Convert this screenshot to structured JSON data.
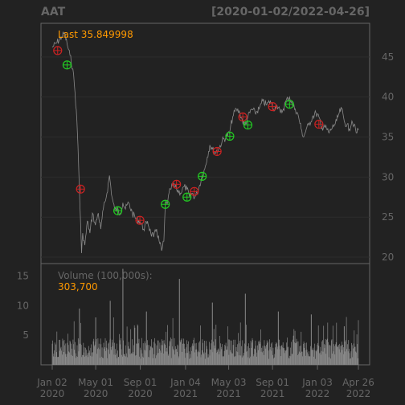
{
  "chart_data": [
    {
      "type": "line",
      "title": "AAT",
      "date_range": "[2020-01-02/2022-04-26]",
      "last_label": "Last 35.849998",
      "y_ticks": [
        "45",
        "40",
        "35",
        "30",
        "25",
        "20"
      ],
      "ylim": [
        19.2,
        49.2
      ],
      "xlim": [
        "2020-01-02",
        "2022-04-26"
      ],
      "grid": true,
      "colors": {
        "price": "#8a8a8a",
        "sell": "#cc2222",
        "buy": "#22cc22",
        "last": "#ff9900",
        "text": "#8a8a8a",
        "axis": "#666666"
      },
      "series": [
        {
          "values": [
            [
              "2020-01-02",
              46.2
            ],
            [
              "2020-01-15",
              46.8
            ],
            [
              "2020-01-28",
              47.5
            ],
            [
              "2020-02-05",
              48.0
            ],
            [
              "2020-02-12",
              46.6
            ],
            [
              "2020-02-20",
              45.2
            ],
            [
              "2020-02-28",
              43.5
            ],
            [
              "2020-03-05",
              40.5
            ],
            [
              "2020-03-10",
              37.0
            ],
            [
              "2020-03-13",
              34.0
            ],
            [
              "2020-03-17",
              28.5
            ],
            [
              "2020-03-20",
              24.5
            ],
            [
              "2020-03-23",
              20.5
            ],
            [
              "2020-03-26",
              23.0
            ],
            [
              "2020-04-01",
              21.5
            ],
            [
              "2020-04-08",
              24.5
            ],
            [
              "2020-04-15",
              23.0
            ],
            [
              "2020-04-22",
              25.5
            ],
            [
              "2020-04-30",
              24.0
            ],
            [
              "2020-05-08",
              25.5
            ],
            [
              "2020-05-15",
              23.5
            ],
            [
              "2020-05-22",
              26.0
            ],
            [
              "2020-06-01",
              28.0
            ],
            [
              "2020-06-08",
              30.2
            ],
            [
              "2020-06-15",
              27.5
            ],
            [
              "2020-06-22",
              26.0
            ],
            [
              "2020-06-30",
              25.8
            ],
            [
              "2020-07-08",
              25.5
            ],
            [
              "2020-07-15",
              26.8
            ],
            [
              "2020-07-22",
              26.0
            ],
            [
              "2020-07-31",
              26.8
            ],
            [
              "2020-08-10",
              25.5
            ],
            [
              "2020-08-20",
              24.8
            ],
            [
              "2020-08-31",
              24.5
            ],
            [
              "2020-09-10",
              23.5
            ],
            [
              "2020-09-21",
              24.5
            ],
            [
              "2020-09-30",
              23.0
            ],
            [
              "2020-10-08",
              22.5
            ],
            [
              "2020-10-16",
              23.5
            ],
            [
              "2020-10-23",
              22.0
            ],
            [
              "2020-10-30",
              20.8
            ],
            [
              "2020-11-05",
              22.0
            ],
            [
              "2020-11-09",
              26.5
            ],
            [
              "2020-11-16",
              27.0
            ],
            [
              "2020-11-23",
              28.5
            ],
            [
              "2020-12-01",
              29.0
            ],
            [
              "2020-12-10",
              28.5
            ],
            [
              "2020-12-21",
              28.0
            ],
            [
              "2020-12-31",
              28.8
            ],
            [
              "2021-01-08",
              28.5
            ],
            [
              "2021-01-15",
              27.5
            ],
            [
              "2021-01-22",
              28.0
            ],
            [
              "2021-01-29",
              27.5
            ],
            [
              "2021-02-05",
              28.0
            ],
            [
              "2021-02-12",
              29.0
            ],
            [
              "2021-02-19",
              30.2
            ],
            [
              "2021-02-26",
              31.0
            ],
            [
              "2021-03-05",
              32.5
            ],
            [
              "2021-03-12",
              34.0
            ],
            [
              "2021-03-19",
              33.5
            ],
            [
              "2021-03-26",
              33.0
            ],
            [
              "2021-04-05",
              33.5
            ],
            [
              "2021-04-15",
              34.5
            ],
            [
              "2021-04-26",
              35.0
            ],
            [
              "2021-05-05",
              35.5
            ],
            [
              "2021-05-14",
              37.5
            ],
            [
              "2021-05-24",
              38.5
            ],
            [
              "2021-06-03",
              38.0
            ],
            [
              "2021-06-10",
              37.0
            ],
            [
              "2021-06-17",
              36.5
            ],
            [
              "2021-06-25",
              37.5
            ],
            [
              "2021-07-06",
              38.5
            ],
            [
              "2021-07-15",
              38.0
            ],
            [
              "2021-07-26",
              38.5
            ],
            [
              "2021-08-05",
              39.5
            ],
            [
              "2021-08-16",
              39.0
            ],
            [
              "2021-08-26",
              39.5
            ],
            [
              "2021-09-03",
              38.5
            ],
            [
              "2021-09-13",
              39.0
            ],
            [
              "2021-09-23",
              38.0
            ],
            [
              "2021-10-01",
              38.5
            ],
            [
              "2021-10-08",
              39.5
            ],
            [
              "2021-10-18",
              40.0
            ],
            [
              "2021-10-26",
              39.0
            ],
            [
              "2021-11-03",
              38.5
            ],
            [
              "2021-11-12",
              37.5
            ],
            [
              "2021-11-19",
              36.0
            ],
            [
              "2021-11-26",
              35.0
            ],
            [
              "2021-12-03",
              36.0
            ],
            [
              "2021-12-10",
              36.5
            ],
            [
              "2021-12-20",
              37.5
            ],
            [
              "2021-12-30",
              38.0
            ],
            [
              "2022-01-07",
              37.5
            ],
            [
              "2022-01-14",
              36.0
            ],
            [
              "2022-01-21",
              36.5
            ],
            [
              "2022-01-28",
              36.0
            ],
            [
              "2022-02-04",
              35.5
            ],
            [
              "2022-02-11",
              36.0
            ],
            [
              "2022-02-18",
              36.5
            ],
            [
              "2022-02-25",
              37.0
            ],
            [
              "2022-03-04",
              38.0
            ],
            [
              "2022-03-11",
              38.5
            ],
            [
              "2022-03-18",
              37.0
            ],
            [
              "2022-03-25",
              36.5
            ],
            [
              "2022-04-01",
              36.0
            ],
            [
              "2022-04-08",
              37.0
            ],
            [
              "2022-04-14",
              36.5
            ],
            [
              "2022-04-20",
              35.5
            ],
            [
              "2022-04-26",
              35.849998
            ]
          ]
        }
      ],
      "signals": [
        {
          "kind": "sell",
          "date": "2020-01-17",
          "value": 45.8
        },
        {
          "kind": "buy",
          "date": "2020-02-12",
          "value": 44.0
        },
        {
          "kind": "sell",
          "date": "2020-03-20",
          "value": 28.5
        },
        {
          "kind": "buy",
          "date": "2020-07-01",
          "value": 25.8
        },
        {
          "kind": "sell",
          "date": "2020-08-31",
          "value": 24.6
        },
        {
          "kind": "buy",
          "date": "2020-11-09",
          "value": 26.6
        },
        {
          "kind": "sell",
          "date": "2020-12-10",
          "value": 29.1
        },
        {
          "kind": "buy",
          "date": "2021-01-08",
          "value": 27.5
        },
        {
          "kind": "sell",
          "date": "2021-01-28",
          "value": 28.2
        },
        {
          "kind": "buy",
          "date": "2021-02-19",
          "value": 30.1
        },
        {
          "kind": "sell",
          "date": "2021-04-01",
          "value": 33.2
        },
        {
          "kind": "buy",
          "date": "2021-05-06",
          "value": 35.1
        },
        {
          "kind": "sell",
          "date": "2021-06-11",
          "value": 37.5
        },
        {
          "kind": "buy",
          "date": "2021-06-25",
          "value": 36.5
        },
        {
          "kind": "sell",
          "date": "2021-09-01",
          "value": 38.8
        },
        {
          "kind": "buy",
          "date": "2021-10-18",
          "value": 39.1
        },
        {
          "kind": "sell",
          "date": "2022-01-07",
          "value": 36.6
        }
      ]
    },
    {
      "type": "bar",
      "label": "Volume (100,000s):",
      "last_value": "303,700",
      "y_ticks": [
        "15",
        "10",
        "5"
      ],
      "ylim": [
        0,
        16
      ],
      "colors": {
        "bar": "#8a8a8a"
      },
      "spikes": [
        {
          "date": "2020-03-17",
          "value": 9.5
        },
        {
          "date": "2020-05-01",
          "value": 8.0
        },
        {
          "date": "2020-06-10",
          "value": 10.8
        },
        {
          "date": "2020-07-15",
          "value": 16.2
        },
        {
          "date": "2020-09-18",
          "value": 9.0
        },
        {
          "date": "2020-12-18",
          "value": 14.5
        },
        {
          "date": "2021-03-19",
          "value": 10.5
        },
        {
          "date": "2021-06-18",
          "value": 12.0
        },
        {
          "date": "2021-09-17",
          "value": 9.0
        },
        {
          "date": "2021-12-17",
          "value": 8.5
        },
        {
          "date": "2022-03-18",
          "value": 6.5
        }
      ],
      "baseline_level": 2.5
    }
  ],
  "x_axis": {
    "ticks": [
      {
        "date": "2020-01-02",
        "line1": "Jan 02",
        "line2": "2020"
      },
      {
        "date": "2020-05-01",
        "line1": "May 01",
        "line2": "2020"
      },
      {
        "date": "2020-09-01",
        "line1": "Sep 01",
        "line2": "2020"
      },
      {
        "date": "2021-01-04",
        "line1": "Jan 04",
        "line2": "2021"
      },
      {
        "date": "2021-05-03",
        "line1": "May 03",
        "line2": "2021"
      },
      {
        "date": "2021-09-01",
        "line1": "Sep 01",
        "line2": "2021"
      },
      {
        "date": "2022-01-03",
        "line1": "Jan 03",
        "line2": "2022"
      },
      {
        "date": "2022-04-26",
        "line1": "Apr 26",
        "line2": "2022"
      }
    ]
  }
}
